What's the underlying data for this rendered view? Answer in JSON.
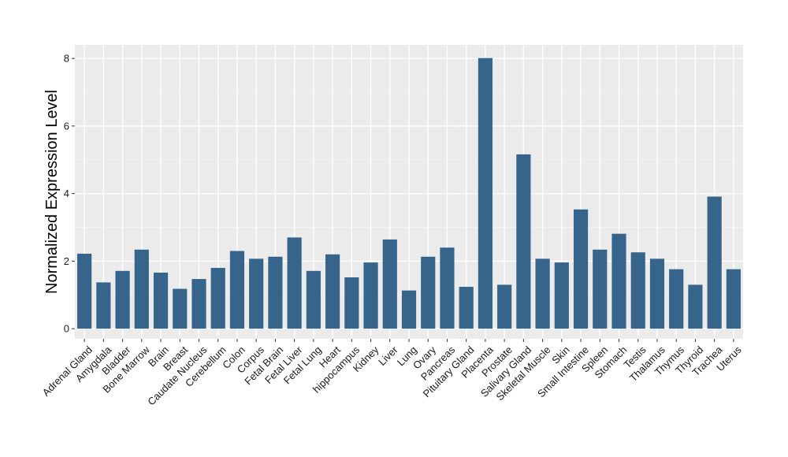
{
  "chart_data": {
    "type": "bar",
    "title": "",
    "xlabel": "",
    "ylabel": "Normalized Expression Level",
    "ylim": [
      -0.3,
      8.4
    ],
    "yticks": [
      0,
      2,
      4,
      6,
      8
    ],
    "grid": true,
    "legend": "none",
    "colors": {
      "bar": "#36648b",
      "panel": "#ebebeb",
      "grid_major": "#ffffff",
      "grid_minor": "#f4f4f4"
    },
    "categories": [
      "Adrenal Gland",
      "Amygdala",
      "Bladder",
      "Bone Marrow",
      "Brain",
      "Breast",
      "Caudate Nucleus",
      "Cerebellum",
      "Colon",
      "Corpus",
      "Fetal Brain",
      "Fetal Liver",
      "Fetal Lung",
      "Heart",
      "hippocampus",
      "Kidney",
      "Liver",
      "Lung",
      "Ovary",
      "Pancreas",
      "Pituitary Gland",
      "Placenta",
      "Prostate",
      "Salivary Gland",
      "Skeletal Muscle",
      "Skin",
      "Small Intestine",
      "Spleen",
      "Stomach",
      "Testis",
      "Thalamus",
      "Thymus",
      "Thyroid",
      "Trachea",
      "Uterus"
    ],
    "values": [
      2.22,
      1.37,
      1.71,
      2.34,
      1.66,
      1.18,
      1.47,
      1.8,
      2.3,
      2.07,
      2.13,
      2.7,
      1.71,
      2.2,
      1.52,
      1.96,
      2.64,
      1.13,
      2.13,
      2.4,
      1.24,
      8.01,
      1.3,
      5.16,
      2.07,
      1.96,
      3.53,
      2.34,
      2.81,
      2.26,
      2.07,
      1.76,
      1.3,
      3.91,
      1.76
    ]
  }
}
